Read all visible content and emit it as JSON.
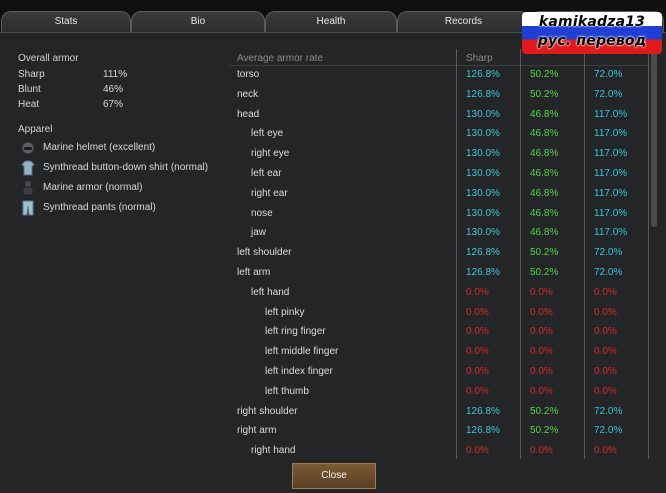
{
  "tabs": [
    {
      "label": "Stats"
    },
    {
      "label": "Bio"
    },
    {
      "label": "Health"
    },
    {
      "label": "Records"
    },
    {
      "label": ""
    }
  ],
  "watermark": {
    "line1": "kamikadza13",
    "line2": "рус. перевод"
  },
  "overall_armor": {
    "title": "Overall armor",
    "rows": [
      {
        "label": "Sharp",
        "value": "111%"
      },
      {
        "label": "Blunt",
        "value": "46%"
      },
      {
        "label": "Heat",
        "value": "67%"
      }
    ]
  },
  "apparel": {
    "title": "Apparel",
    "items": [
      {
        "label": "Marine helmet (excellent)",
        "icon": "helmet-icon"
      },
      {
        "label": "Synthread button-down shirt (normal)",
        "icon": "shirt-icon"
      },
      {
        "label": "Marine armor (normal)",
        "icon": "armor-icon"
      },
      {
        "label": "Synthread pants (normal)",
        "icon": "pants-icon"
      }
    ]
  },
  "table": {
    "headers": {
      "part": "Average armor rate",
      "sharp": "Sharp"
    },
    "colors": {
      "sharp": "#3ec9d9",
      "blunt": "#4fd64a",
      "heat": "#31c6e0",
      "zero": "#d42a2a"
    },
    "rows": [
      {
        "part": "torso",
        "indent": 0,
        "sharp": "126.8%",
        "blunt": "50.2%",
        "heat": "72.0%"
      },
      {
        "part": "neck",
        "indent": 0,
        "sharp": "126.8%",
        "blunt": "50.2%",
        "heat": "72.0%"
      },
      {
        "part": "head",
        "indent": 0,
        "sharp": "130.0%",
        "blunt": "46.8%",
        "heat": "117.0%"
      },
      {
        "part": "left eye",
        "indent": 1,
        "sharp": "130.0%",
        "blunt": "46.8%",
        "heat": "117.0%"
      },
      {
        "part": "right eye",
        "indent": 1,
        "sharp": "130.0%",
        "blunt": "46.8%",
        "heat": "117.0%"
      },
      {
        "part": "left ear",
        "indent": 1,
        "sharp": "130.0%",
        "blunt": "46.8%",
        "heat": "117.0%"
      },
      {
        "part": "right ear",
        "indent": 1,
        "sharp": "130.0%",
        "blunt": "46.8%",
        "heat": "117.0%"
      },
      {
        "part": "nose",
        "indent": 1,
        "sharp": "130.0%",
        "blunt": "46.8%",
        "heat": "117.0%"
      },
      {
        "part": "jaw",
        "indent": 1,
        "sharp": "130.0%",
        "blunt": "46.8%",
        "heat": "117.0%"
      },
      {
        "part": "left shoulder",
        "indent": 0,
        "sharp": "126.8%",
        "blunt": "50.2%",
        "heat": "72.0%"
      },
      {
        "part": "left arm",
        "indent": 0,
        "sharp": "126.8%",
        "blunt": "50.2%",
        "heat": "72.0%"
      },
      {
        "part": "left hand",
        "indent": 1,
        "sharp": "0.0%",
        "blunt": "0.0%",
        "heat": "0.0%"
      },
      {
        "part": "left pinky",
        "indent": 2,
        "sharp": "0.0%",
        "blunt": "0.0%",
        "heat": "0.0%"
      },
      {
        "part": "left ring finger",
        "indent": 2,
        "sharp": "0.0%",
        "blunt": "0.0%",
        "heat": "0.0%"
      },
      {
        "part": "left middle finger",
        "indent": 2,
        "sharp": "0.0%",
        "blunt": "0.0%",
        "heat": "0.0%"
      },
      {
        "part": "left index finger",
        "indent": 2,
        "sharp": "0.0%",
        "blunt": "0.0%",
        "heat": "0.0%"
      },
      {
        "part": "left thumb",
        "indent": 2,
        "sharp": "0.0%",
        "blunt": "0.0%",
        "heat": "0.0%"
      },
      {
        "part": "right shoulder",
        "indent": 0,
        "sharp": "126.8%",
        "blunt": "50.2%",
        "heat": "72.0%"
      },
      {
        "part": "right arm",
        "indent": 0,
        "sharp": "126.8%",
        "blunt": "50.2%",
        "heat": "72.0%"
      },
      {
        "part": "right hand",
        "indent": 1,
        "sharp": "0.0%",
        "blunt": "0.0%",
        "heat": "0.0%"
      }
    ]
  },
  "close_button": {
    "label": "Close"
  }
}
